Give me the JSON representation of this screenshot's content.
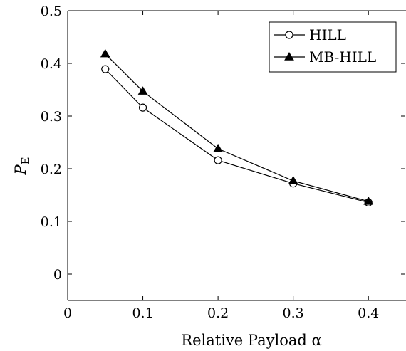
{
  "chart_data": {
    "type": "line",
    "xlabel": "Relative Payload α",
    "ylabel_main": "P",
    "ylabel_sub": "E",
    "xlim": [
      0,
      0.45
    ],
    "ylim": [
      -0.05,
      0.5
    ],
    "xticks": [
      0,
      0.1,
      0.2,
      0.3,
      0.4
    ],
    "xtick_labels": [
      "0",
      "0.1",
      "0.2",
      "0.3",
      "0.4"
    ],
    "yticks": [
      0,
      0.1,
      0.2,
      0.3,
      0.4,
      0.5
    ],
    "ytick_labels": [
      "0",
      "0.1",
      "0.2",
      "0.3",
      "0.4",
      "0.5"
    ],
    "legend_position": "top-right",
    "grid": false,
    "x": [
      0.05,
      0.1,
      0.2,
      0.3,
      0.4
    ],
    "series": [
      {
        "name": "HILL",
        "marker": "circle-open",
        "values": [
          0.389,
          0.316,
          0.216,
          0.172,
          0.136
        ]
      },
      {
        "name": "MB-HILL",
        "marker": "triangle-filled",
        "values": [
          0.418,
          0.347,
          0.238,
          0.177,
          0.138
        ]
      }
    ]
  }
}
